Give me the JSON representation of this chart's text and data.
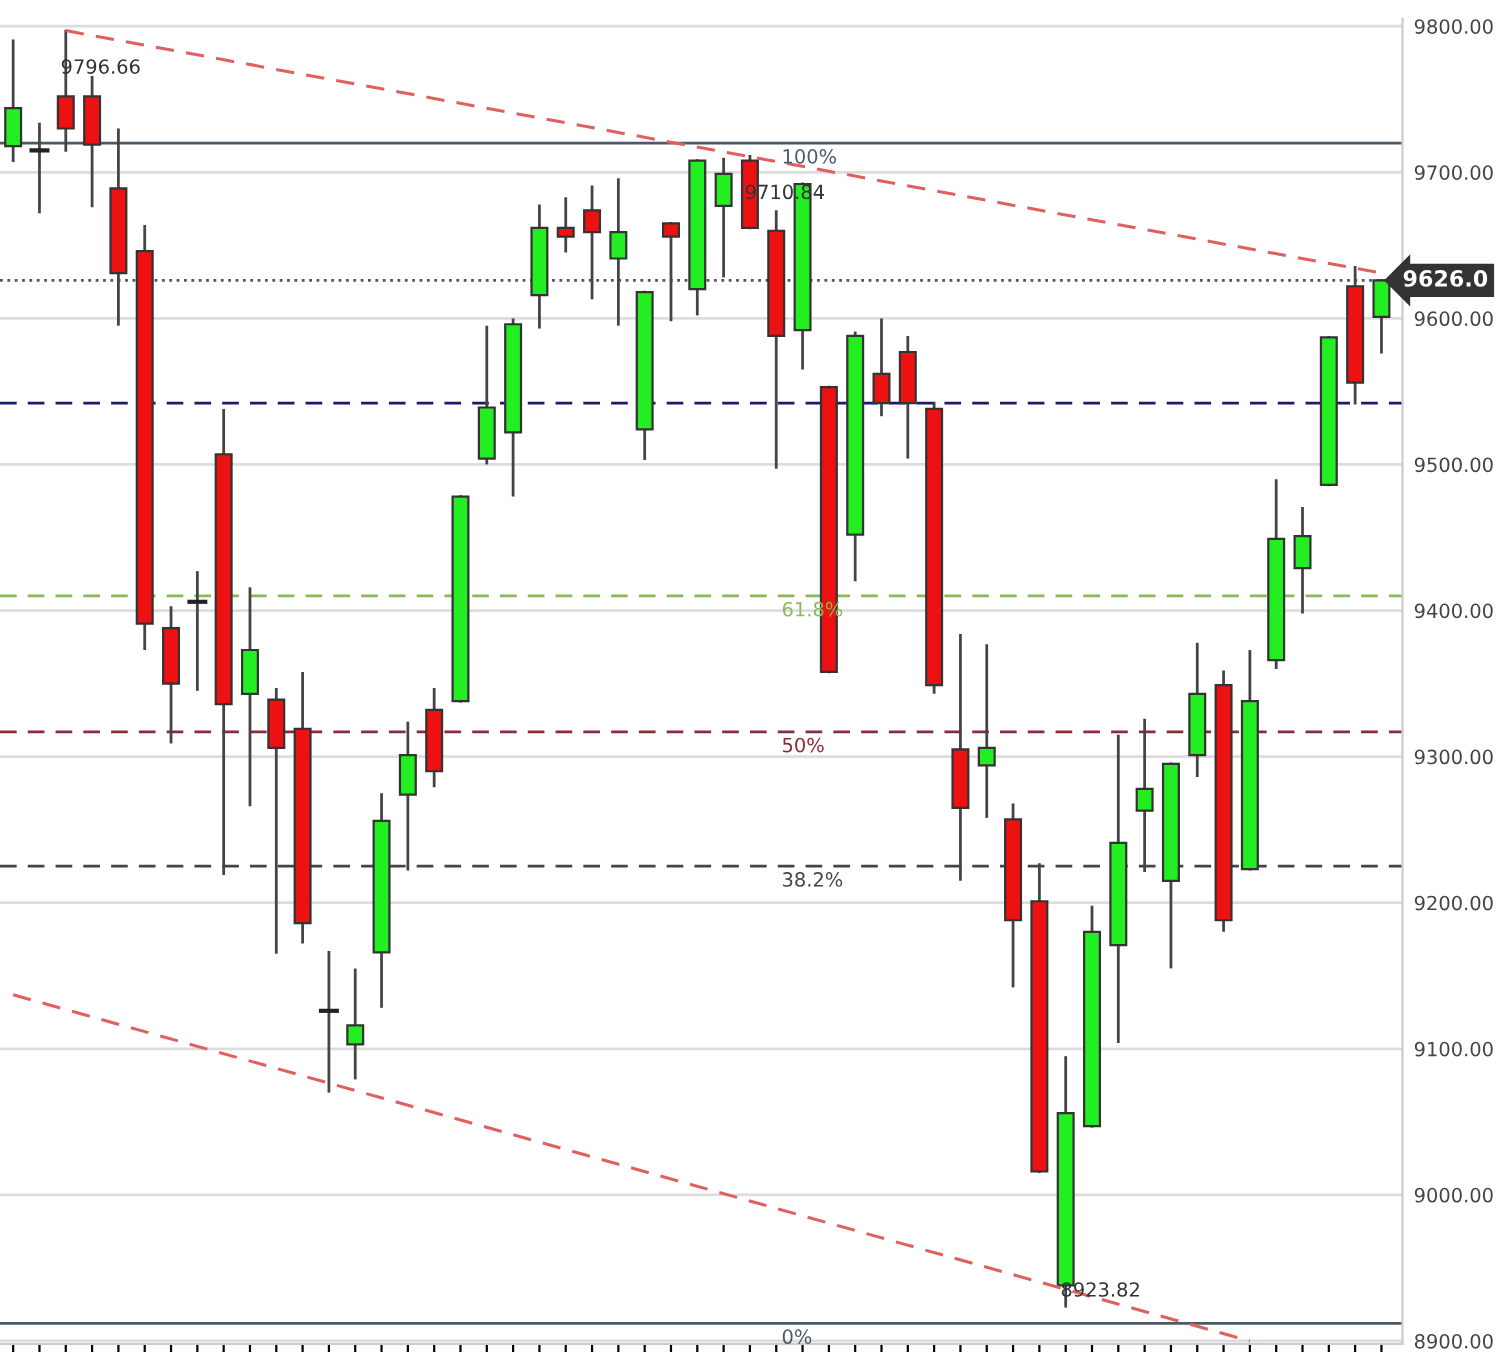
{
  "chart_data": {
    "type": "candlestick",
    "categories": [
      null,
      null,
      null,
      null,
      null,
      null,
      null,
      null,
      null,
      null,
      null,
      null,
      null,
      null,
      null,
      null,
      null,
      null,
      null,
      null,
      null,
      null,
      null,
      null,
      null,
      null,
      null,
      null,
      null,
      null,
      null,
      null,
      null,
      null,
      null,
      null,
      null,
      null,
      null,
      null,
      null,
      null,
      null,
      null,
      null,
      null,
      null,
      null,
      null,
      null,
      null,
      null,
      null
    ],
    "ohlc": [
      [
        9718,
        9790,
        9708,
        9744
      ],
      [
        9715,
        9733,
        9673,
        9715
      ],
      [
        9752,
        9796.66,
        9715,
        9730
      ],
      [
        9752,
        9765,
        9677,
        9719
      ],
      [
        9689,
        9729,
        9596,
        9631
      ],
      [
        9646,
        9663,
        9374,
        9391
      ],
      [
        9388,
        9402,
        9310,
        9350
      ],
      [
        9406,
        9426,
        9346,
        9406
      ],
      [
        9507,
        9537,
        9220,
        9336
      ],
      [
        9343,
        9415,
        9267,
        9373
      ],
      [
        9339,
        9346,
        9166,
        9306
      ],
      [
        9319,
        9357,
        9173,
        9186
      ],
      [
        9126,
        9166,
        9071,
        9126
      ],
      [
        9103,
        9154,
        9080,
        9116
      ],
      [
        9166,
        9274,
        9129,
        9256
      ],
      [
        9274,
        9323,
        9223,
        9301
      ],
      [
        9332,
        9346,
        9280,
        9290
      ],
      [
        9338,
        9478,
        9338,
        9478
      ],
      [
        9504,
        9594,
        9501,
        9539
      ],
      [
        9522,
        9599,
        9479,
        9596
      ],
      [
        9616,
        9677,
        9594,
        9662
      ],
      [
        9662,
        9682,
        9646,
        9656
      ],
      [
        9674,
        9690,
        9614,
        9659
      ],
      [
        9641,
        9695,
        9596,
        9659
      ],
      [
        9524,
        9618,
        9504,
        9618
      ],
      [
        9665,
        9665,
        9599,
        9656
      ],
      [
        9620,
        9708,
        9603,
        9708
      ],
      [
        9677,
        9709,
        9629,
        9699
      ],
      [
        9708,
        9710.84,
        9662,
        9662
      ],
      [
        9660,
        9673,
        9498,
        9588
      ],
      [
        9592,
        9692,
        9566,
        9692
      ],
      [
        9553,
        9553,
        9358,
        9358
      ],
      [
        9452,
        9590,
        9421,
        9588
      ],
      [
        9562,
        9599,
        9534,
        9542
      ],
      [
        9577,
        9587,
        9505,
        9542
      ],
      [
        9538,
        9542,
        9344,
        9349
      ],
      [
        9305,
        9383,
        9216,
        9265
      ],
      [
        9294,
        9376,
        9259,
        9306
      ],
      [
        9257,
        9267,
        9143,
        9188
      ],
      [
        9201,
        9226,
        9016,
        9016
      ],
      [
        8938,
        9094,
        8923.82,
        9056
      ],
      [
        9047,
        9197,
        9047,
        9180
      ],
      [
        9171,
        9314,
        9105,
        9241
      ],
      [
        9263,
        9325,
        9222,
        9278
      ],
      [
        9215,
        9295,
        9156,
        9295
      ],
      [
        9301,
        9377,
        9287,
        9343
      ],
      [
        9349,
        9358,
        9181,
        9188
      ],
      [
        9223,
        9372,
        9223,
        9338
      ],
      [
        9366,
        9489,
        9361,
        9449
      ],
      [
        9429,
        9470,
        9399,
        9451
      ],
      [
        9486,
        9587,
        9486,
        9587
      ],
      [
        9622,
        9635,
        9542,
        9556
      ],
      [
        9601,
        9626,
        9577,
        9626
      ]
    ],
    "colors": [
      "#22ee22",
      "#222222",
      "#ee1111",
      "#ee1111",
      "#ee1111",
      "#ee1111",
      "#ee1111",
      "#222222",
      "#ee1111",
      "#22ee22",
      "#ee1111",
      "#ee1111",
      "#222222",
      "#22ee22",
      "#22ee22",
      "#22ee22",
      "#ee1111",
      "#22ee22",
      "#22ee22",
      "#22ee22",
      "#22ee22",
      "#ee1111",
      "#ee1111",
      "#22ee22",
      "#22ee22",
      "#ee1111",
      "#22ee22",
      "#22ee22",
      "#ee1111",
      "#ee1111",
      "#22ee22",
      "#ee1111",
      "#22ee22",
      "#ee1111",
      "#ee1111",
      "#ee1111",
      "#ee1111",
      "#22ee22",
      "#ee1111",
      "#ee1111",
      "#22ee22",
      "#22ee22",
      "#22ee22",
      "#22ee22",
      "#22ee22",
      "#22ee22",
      "#ee1111",
      "#22ee22",
      "#22ee22",
      "#22ee22",
      "#22ee22",
      "#ee1111",
      "#22ee22"
    ],
    "series": [
      {
        "type": "line",
        "values": [
          null,
          null,
          9797,
          null,
          null,
          null,
          null,
          null,
          null,
          null,
          null,
          null,
          null,
          null,
          null,
          null,
          null,
          null,
          null,
          null,
          null,
          null,
          null,
          null,
          null,
          null,
          null,
          null,
          null,
          null,
          null,
          null,
          null,
          null,
          null,
          null,
          null,
          null,
          null,
          null,
          null,
          null,
          null,
          null,
          null,
          null,
          null,
          null,
          null,
          null,
          null,
          null,
          9631
        ],
        "color": "#e06060",
        "line_style": "dashed"
      },
      {
        "type": "line",
        "values": [
          9137,
          null,
          null,
          null,
          null,
          null,
          null,
          null,
          null,
          null,
          null,
          null,
          null,
          null,
          null,
          null,
          null,
          null,
          null,
          null,
          null,
          null,
          null,
          null,
          null,
          null,
          null,
          null,
          null,
          null,
          null,
          null,
          null,
          null,
          null,
          null,
          null,
          null,
          null,
          null,
          null,
          null,
          null,
          null,
          null,
          null,
          null,
          8900,
          null,
          null,
          null,
          null,
          null
        ],
        "color": "#e06060",
        "line_style": "dashed"
      }
    ],
    "ref_lines": [
      {
        "axis": "y",
        "value": 9626,
        "label": "9626.0",
        "color": "#555555",
        "line_style": "dotted"
      },
      {
        "axis": "y",
        "value": 9542,
        "color": "#1a1a6e",
        "line_style": "dashed"
      },
      {
        "axis": "y",
        "value": 9720,
        "color": "#4a5a6a",
        "line_style": "solid"
      },
      {
        "axis": "y",
        "value": 9410,
        "color": "#88bb55",
        "line_style": "dashed"
      },
      {
        "axis": "y",
        "value": 9317,
        "color": "#8b2a3a",
        "line_style": "dashed"
      },
      {
        "axis": "y",
        "value": 9225,
        "color": "#444444",
        "line_style": "dashed"
      },
      {
        "axis": "y",
        "value": 8912,
        "color": "#4a5a6a",
        "line_style": "solid"
      }
    ],
    "annotations": [
      {
        "text": "9796.66",
        "y": 9796.66
      },
      {
        "text": "9710.84",
        "y": 9710.84
      },
      {
        "text": "8923.82",
        "y": 8923.82
      },
      {
        "text": "100%",
        "y": 9720
      },
      {
        "text": "61.8%",
        "y": 9410
      },
      {
        "text": "50%",
        "y": 9317
      },
      {
        "text": "38.2%",
        "y": 9225
      },
      {
        "text": "0%",
        "y": 8912
      }
    ],
    "ylim": [
      8898,
      9805
    ],
    "yticks": [
      {
        "value": 8900,
        "label": "8900.00"
      },
      {
        "value": 9000,
        "label": "9000.00"
      },
      {
        "value": 9100,
        "label": "9100.00"
      },
      {
        "value": 9200,
        "label": "9200.00"
      },
      {
        "value": 9300,
        "label": "9300.00"
      },
      {
        "value": 9400,
        "label": "9400.00"
      },
      {
        "value": 9500,
        "label": "9500.00"
      },
      {
        "value": 9600,
        "label": "9600.00"
      },
      {
        "value": 9700,
        "label": "9700.00"
      },
      {
        "value": 9800,
        "label": "9800.00"
      }
    ],
    "grid": "y",
    "tick_labels": "y",
    "legend": false
  }
}
